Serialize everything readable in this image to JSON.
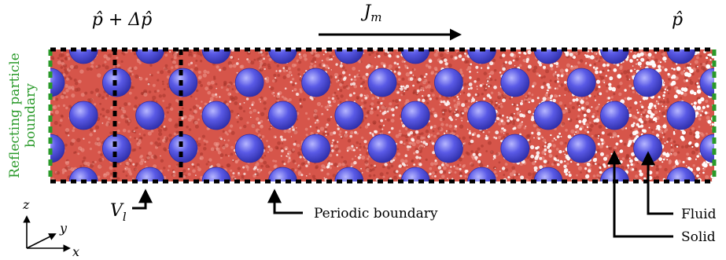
{
  "labels": {
    "inlet_pressure": "p̂ + Δp̂",
    "flux": "J",
    "flux_sub": "m",
    "outlet_pressure": "p̂",
    "left_boundary_line1": "Reflecting particle",
    "left_boundary_line2": "boundary",
    "control_volume": "V",
    "control_volume_sub": "l",
    "periodic_boundary": "Periodic boundary",
    "fluid": "Fluid",
    "solid": "Solid",
    "axis_z": "z",
    "axis_y": "y",
    "axis_x": "x"
  },
  "colors": {
    "fluid": "#d6554a",
    "fluid_light": "#ef9a8f",
    "fluid_dark": "#a5342c",
    "solid": "#5a5ae6",
    "solid_dark": "#2e2ea8",
    "solid_highlight": "#b7b7ff",
    "reflecting_boundary": "#2a9a2a",
    "periodic_boundary": "#000000"
  },
  "solid_grid": {
    "columns": 10,
    "rows": 5,
    "staggered": true
  }
}
